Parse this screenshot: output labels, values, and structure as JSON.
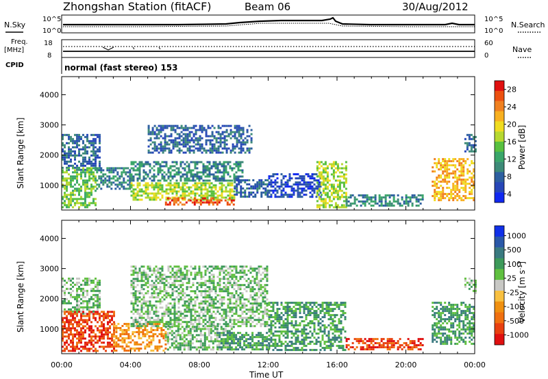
{
  "header": {
    "station": "Zhongshan Station (fitACF)",
    "beam": "Beam 06",
    "date": "30/Aug/2012"
  },
  "nsky": {
    "label": "N.Sky",
    "ticks_left": [
      "10^5",
      "10^0"
    ],
    "ticks_right": [
      "10^5",
      "10^0"
    ],
    "right_label": "N.Search"
  },
  "freq": {
    "label_line1": "Freq.",
    "label_line2": "[MHz]",
    "ticks_left": [
      "18",
      "8"
    ],
    "ticks_right": [
      "60",
      "0"
    ],
    "right_label": "Nave",
    "cpid_label": "CPID",
    "cpid_text": "normal (fast stereo) 153"
  },
  "x_axis": {
    "ticks": [
      "00:00",
      "04:00",
      "08:00",
      "12:00",
      "16:00",
      "20:00",
      "00:00"
    ],
    "label": "Time UT"
  },
  "chart_data": [
    {
      "type": "heatmap",
      "panel": "power",
      "ylabel": "Slant Range [km]",
      "y_ticks": [
        1000,
        2000,
        3000,
        4000
      ],
      "ylim": [
        180,
        4600
      ],
      "xlim_hours": [
        0,
        24
      ],
      "colorbar": {
        "label": "Power [dB]",
        "ticks": [
          "4",
          "8",
          "12",
          "16",
          "20",
          "24",
          "28"
        ],
        "colors": [
          "#1028f0",
          "#2747b8",
          "#2d5fa0",
          "#3d8a78",
          "#3aa66a",
          "#58c040",
          "#b6d830",
          "#f0dc20",
          "#f8b020",
          "#f08020",
          "#ec5010",
          "#e01010"
        ]
      },
      "series": [
        {
          "x_hours": [
            0,
            2.2
          ],
          "y_range": [
            1500,
            2700
          ],
          "level": 2
        },
        {
          "x_hours": [
            0,
            2
          ],
          "y_range": [
            300,
            1600
          ],
          "level": 5
        },
        {
          "x_hours": [
            2,
            4
          ],
          "y_range": [
            900,
            1600
          ],
          "level": 3
        },
        {
          "x_hours": [
            4,
            10.5
          ],
          "y_range": [
            1150,
            1800
          ],
          "level": 3
        },
        {
          "x_hours": [
            4,
            10
          ],
          "y_range": [
            500,
            1100
          ],
          "level": 6
        },
        {
          "x_hours": [
            6,
            10
          ],
          "y_range": [
            350,
            600
          ],
          "level": 10
        },
        {
          "x_hours": [
            5,
            11
          ],
          "y_range": [
            2100,
            3000
          ],
          "level": 2
        },
        {
          "x_hours": [
            10,
            12
          ],
          "y_range": [
            600,
            1200
          ],
          "level": 2
        },
        {
          "x_hours": [
            12,
            15
          ],
          "y_range": [
            600,
            1400
          ],
          "level": 1
        },
        {
          "x_hours": [
            14.8,
            16.5
          ],
          "y_range": [
            300,
            1800
          ],
          "level": 6
        },
        {
          "x_hours": [
            16.5,
            21
          ],
          "y_range": [
            300,
            700
          ],
          "level": 3
        },
        {
          "x_hours": [
            21.5,
            24
          ],
          "y_range": [
            500,
            1900
          ],
          "level": 8
        },
        {
          "x_hours": [
            23.4,
            24
          ],
          "y_range": [
            2100,
            2700
          ],
          "level": 2
        }
      ]
    },
    {
      "type": "heatmap",
      "panel": "velocity",
      "ylabel": "Slant Range [km]",
      "y_ticks": [
        1000,
        2000,
        3000,
        4000
      ],
      "ylim": [
        180,
        4600
      ],
      "xlim_hours": [
        0,
        24
      ],
      "colorbar": {
        "label": "Velocity [m s^-1]",
        "ticks": [
          "1000",
          "500",
          "100",
          "25",
          "-25",
          "-100",
          "-500",
          "-1000"
        ],
        "colors": [
          "#1030e8",
          "#2a58a8",
          "#3a7a80",
          "#3d9a5a",
          "#60c040",
          "#c8c8c4",
          "#f8c040",
          "#f09010",
          "#f07010",
          "#e84010",
          "#e01010"
        ]
      },
      "series": [
        {
          "x_hours": [
            0,
            2.2
          ],
          "y_range": [
            1500,
            2700
          ],
          "value": "25"
        },
        {
          "x_hours": [
            0,
            3
          ],
          "y_range": [
            300,
            1600
          ],
          "value": "-500"
        },
        {
          "x_hours": [
            3,
            6
          ],
          "y_range": [
            300,
            1200
          ],
          "value": "-100"
        },
        {
          "x_hours": [
            4,
            12
          ],
          "y_range": [
            1100,
            3100
          ],
          "value": "25"
        },
        {
          "x_hours": [
            6,
            10
          ],
          "y_range": [
            350,
            1100
          ],
          "value": "25"
        },
        {
          "x_hours": [
            9,
            12
          ],
          "y_range": [
            300,
            900
          ],
          "value": "100"
        },
        {
          "x_hours": [
            12,
            16.5
          ],
          "y_range": [
            300,
            1900
          ],
          "value": "100"
        },
        {
          "x_hours": [
            16.5,
            21
          ],
          "y_range": [
            300,
            700
          ],
          "value": "-500"
        },
        {
          "x_hours": [
            21.5,
            24
          ],
          "y_range": [
            500,
            1900
          ],
          "value": "100"
        },
        {
          "x_hours": [
            23.4,
            24
          ],
          "y_range": [
            2100,
            2700
          ],
          "value": "25"
        }
      ]
    }
  ]
}
